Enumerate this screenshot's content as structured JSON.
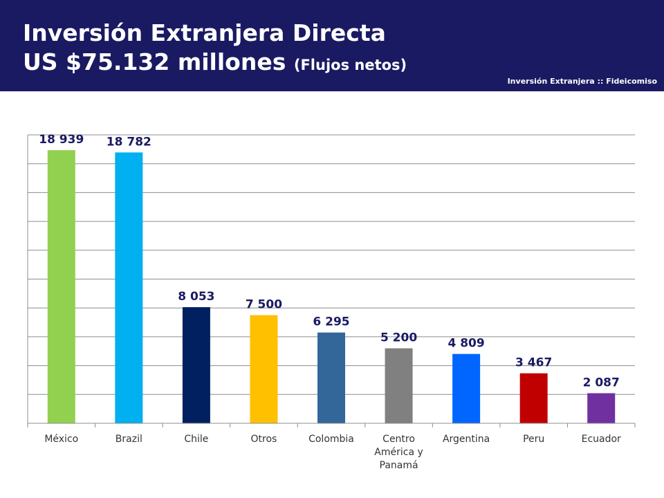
{
  "header": {
    "title_line1": "Inversión Extranjera Directa",
    "title_line2_main": "US $75.132 millones",
    "title_line2_suffix": "(Flujos netos)",
    "section_label": "Inversión Extranjera :: Fideicomiso",
    "background_color": "#1a1a63"
  },
  "chart_data": {
    "type": "bar",
    "categories": [
      "México",
      "Brazil",
      "Chile",
      "Otros",
      "Colombia",
      "Centro América y Panamá",
      "Argentina",
      "Peru",
      "Ecuador"
    ],
    "category_lines": [
      [
        "México"
      ],
      [
        "Brazil"
      ],
      [
        "Chile"
      ],
      [
        "Otros"
      ],
      [
        "Colombia"
      ],
      [
        "Centro",
        "América y",
        "Panamá"
      ],
      [
        "Argentina"
      ],
      [
        "Peru"
      ],
      [
        "Ecuador"
      ]
    ],
    "values": [
      18939,
      18782,
      8053,
      7500,
      6295,
      5200,
      4809,
      3467,
      2087
    ],
    "value_labels": [
      "18 939",
      "18 782",
      "8 053",
      "7 500",
      "6 295",
      "5 200",
      "4 809",
      "3 467",
      "2 087"
    ],
    "colors": [
      "#92d050",
      "#00b0f0",
      "#002060",
      "#ffc000",
      "#336699",
      "#808080",
      "#0066ff",
      "#c00000",
      "#7030a0"
    ],
    "ylim": [
      0,
      20000
    ],
    "grid": true,
    "legend": "none"
  }
}
